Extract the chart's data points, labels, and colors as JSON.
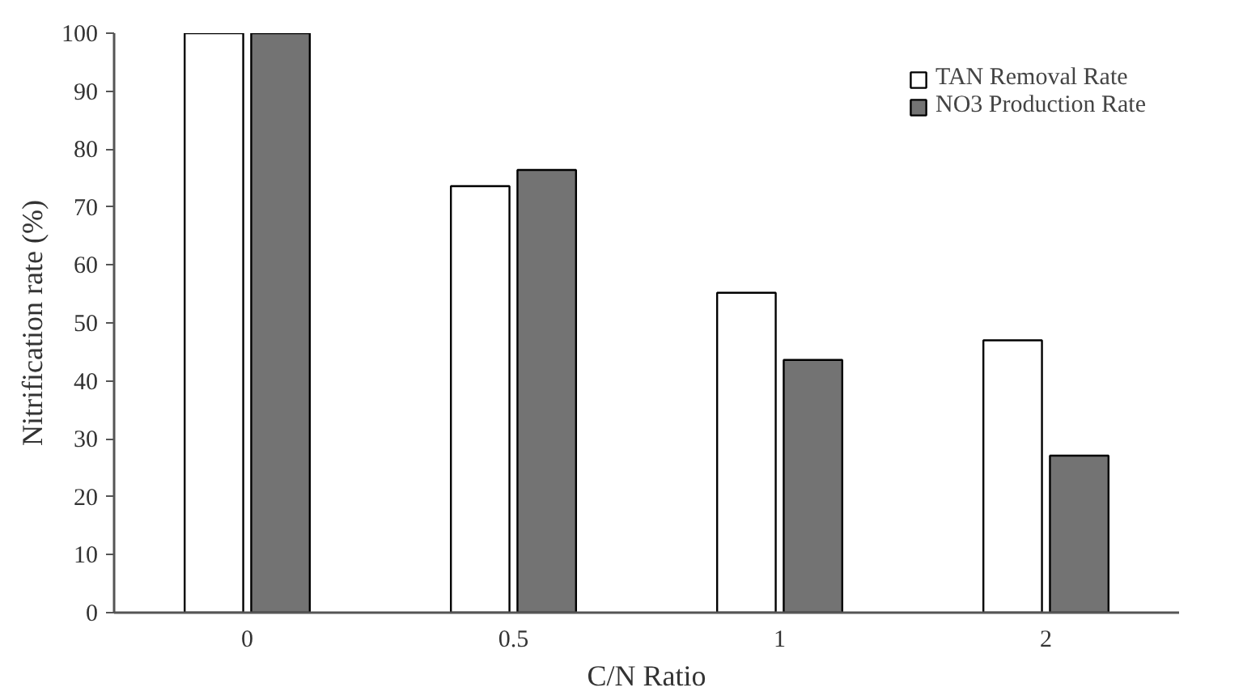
{
  "chart_data": {
    "type": "bar",
    "xlabel": "C/N Ratio",
    "ylabel": "Nitrification rate (%)",
    "categories": [
      "0",
      "0.5",
      "1",
      "2"
    ],
    "series": [
      {
        "name": "TAN Removal Rate",
        "color": "#ffffff",
        "values": [
          100,
          73.6,
          55.2,
          47.0
        ]
      },
      {
        "name": "NO3 Production Rate",
        "color": "#737373",
        "values": [
          100,
          76.4,
          43.6,
          27.1
        ]
      }
    ],
    "ylim": [
      0,
      100
    ],
    "yticks": [
      0,
      10,
      20,
      30,
      40,
      50,
      60,
      70,
      80,
      90,
      100
    ],
    "grid": false,
    "legend": "top right"
  }
}
